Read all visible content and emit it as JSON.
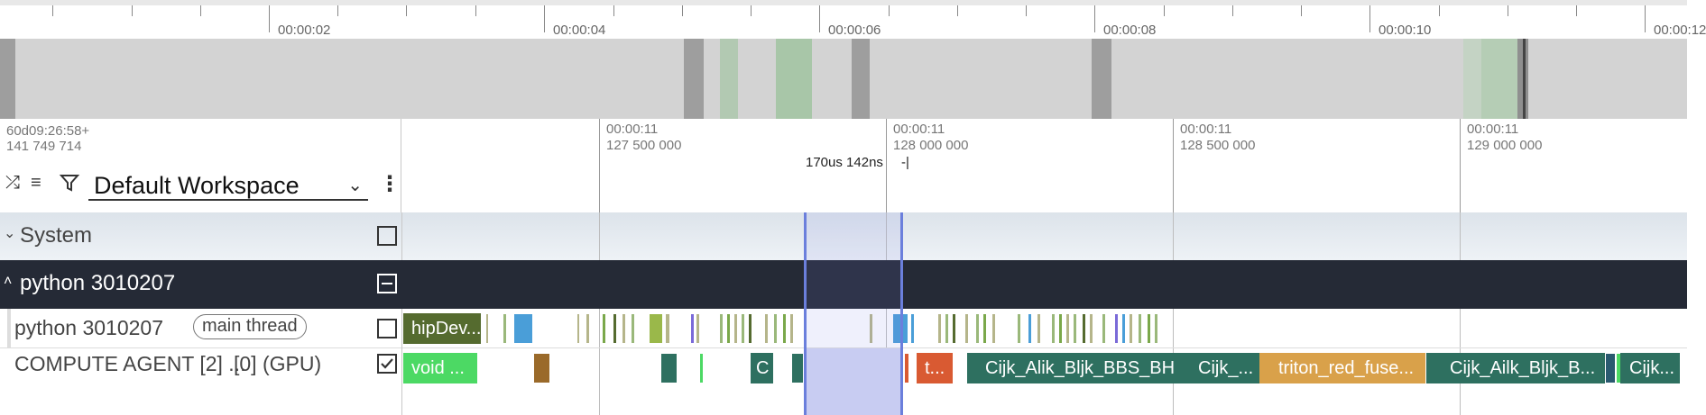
{
  "overview": {
    "tick_labels": [
      "00:00:02",
      "00:00:04",
      "00:00:06",
      "00:00:08",
      "00:00:10",
      "00:00:12"
    ]
  },
  "header": {
    "timestamp_offset": "60d09:26:58+\n141 749 714",
    "workspace": "Default Workspace",
    "tick_labels": [
      "00:00:11\n127 500 000",
      "00:00:11\n128 000 000",
      "00:00:11\n128 500 000",
      "00:00:11\n129 000 000"
    ],
    "measure_label": "170us 142ns",
    "measure_mark": "-|"
  },
  "icons": {
    "collapse": "collapse-all-icon",
    "list": "list-icon",
    "filter": "filter-icon",
    "chevron": "chevron-down-icon",
    "more": "kebab-icon"
  },
  "tracks": {
    "system": {
      "label": "System",
      "chevron": "⌄"
    },
    "process": {
      "label": "python 3010207",
      "chevron": "˄"
    },
    "thread": {
      "label": "python 3010207",
      "chip": "main thread",
      "first_slice": "hipDev..."
    },
    "gpu": {
      "label": "COMPUTE AGENT [2] ...",
      "sublabel": "[0] (GPU)",
      "slices": [
        "void ...",
        "C",
        "t...",
        "Cijk_Alik_Bljk_BBS_BH...",
        "Cijk_...",
        "triton_red_fuse...",
        "Cijk_Ailk_Bljk_B...",
        "Cijk..."
      ]
    }
  },
  "colors": {
    "process_bg": "#252a36",
    "selection": "#6b7fdc",
    "slice_green": "#4cd964",
    "slice_teal": "#2e7060",
    "slice_orange": "#d9a14a",
    "slice_red": "#d95a32",
    "slice_olive": "#556b2f"
  }
}
